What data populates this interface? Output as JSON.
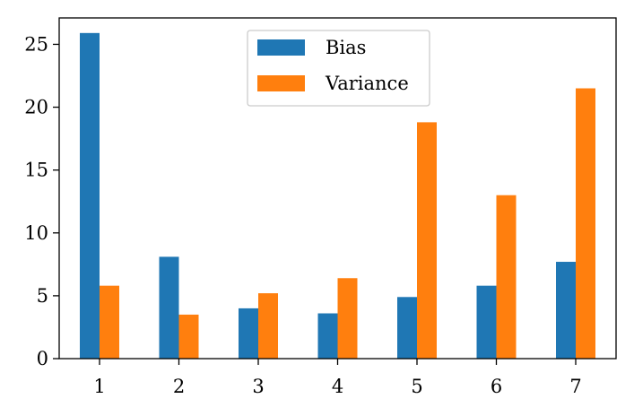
{
  "chart_data": {
    "type": "bar",
    "categories": [
      "1",
      "2",
      "3",
      "4",
      "5",
      "6",
      "7"
    ],
    "series": [
      {
        "name": "Bias",
        "color": "#1f77b4",
        "values": [
          25.9,
          8.1,
          4.0,
          3.6,
          4.9,
          5.8,
          7.7
        ]
      },
      {
        "name": "Variance",
        "color": "#ff7f0e",
        "values": [
          5.8,
          3.5,
          5.2,
          6.4,
          18.8,
          13.0,
          21.5
        ]
      }
    ],
    "yticks": [
      0,
      5,
      10,
      15,
      20,
      25
    ],
    "ylim": [
      0,
      27.1
    ],
    "legend_position": "upper-center",
    "grid": false
  }
}
